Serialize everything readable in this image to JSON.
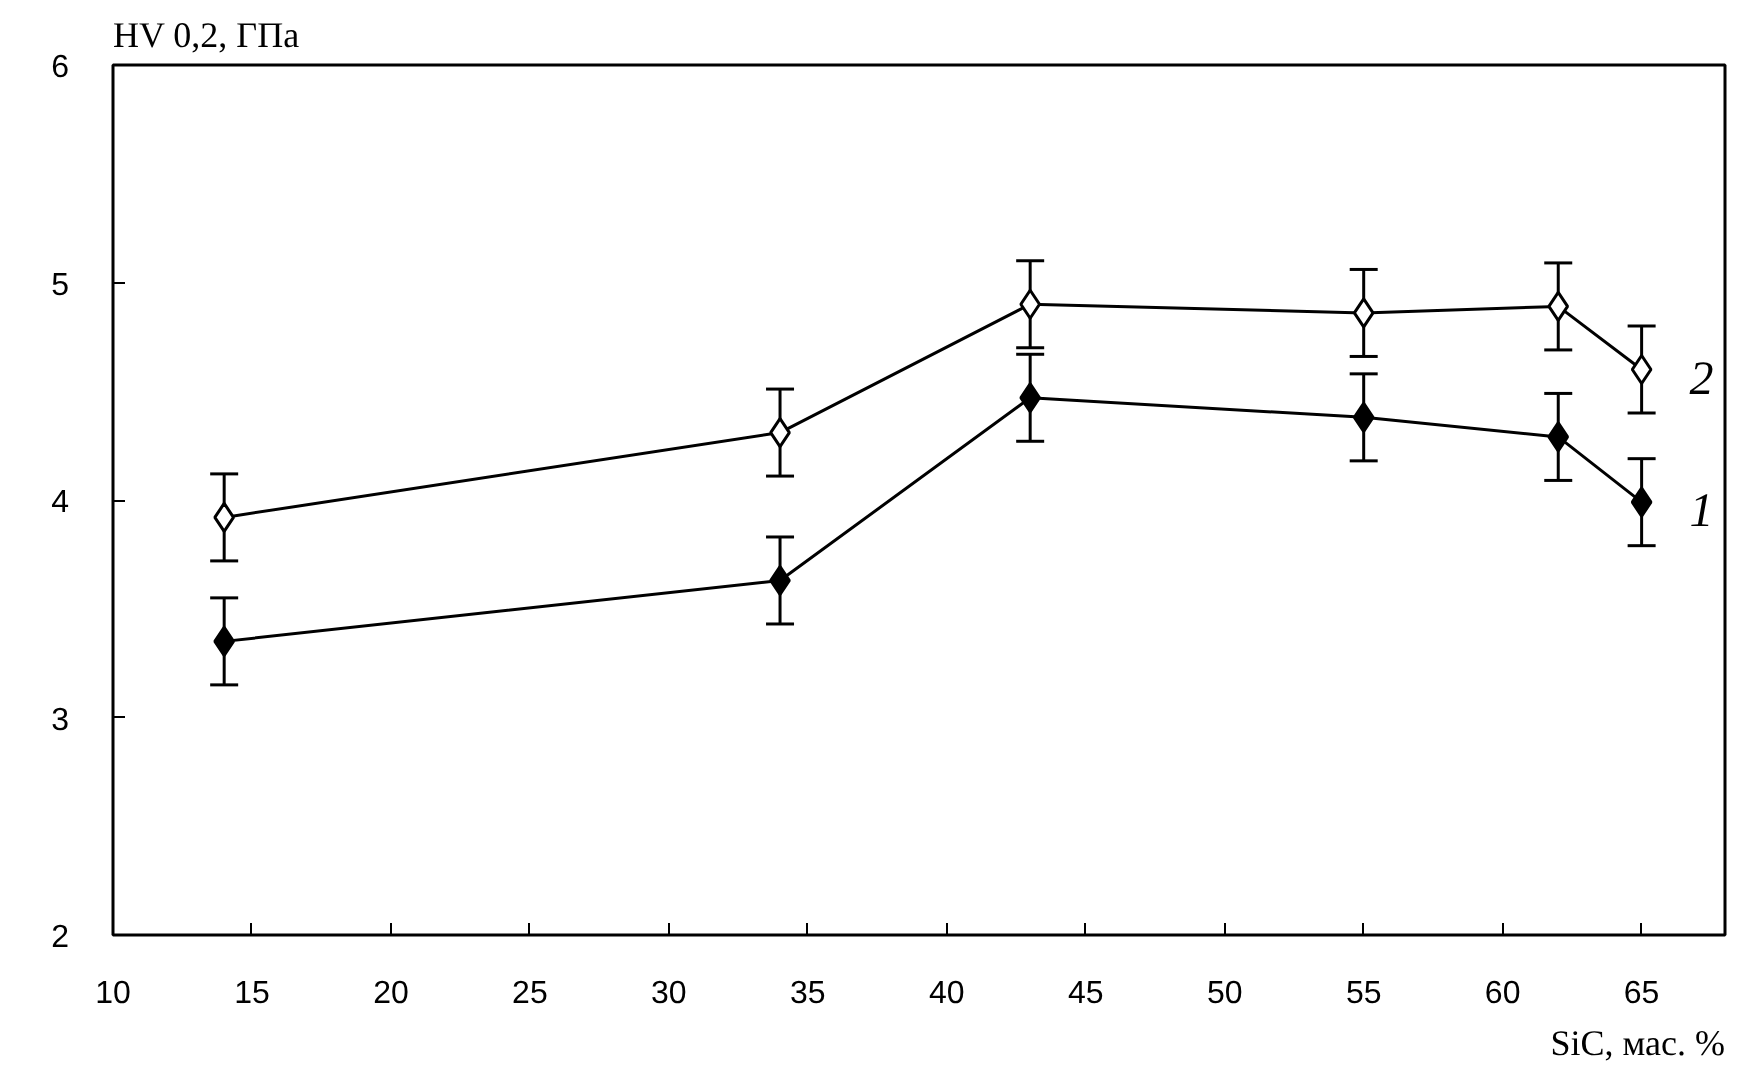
{
  "chart_data": {
    "type": "line",
    "xlabel": "SiC, мас. %",
    "ylabel": "HV 0,2, ГПа",
    "x": [
      14,
      34,
      43,
      55,
      62,
      65
    ],
    "series": [
      {
        "name": "1",
        "color": "#000000",
        "values": [
          3.35,
          3.63,
          4.47,
          4.38,
          4.29,
          3.99
        ],
        "errors": [
          0.2,
          0.2,
          0.2,
          0.2,
          0.2,
          0.2
        ]
      },
      {
        "name": "2",
        "color": "#000000",
        "values": [
          3.92,
          4.31,
          4.9,
          4.86,
          4.89,
          4.6
        ],
        "errors": [
          0.2,
          0.2,
          0.2,
          0.2,
          0.2,
          0.2
        ]
      }
    ],
    "xlim": [
      10,
      68
    ],
    "xticks": [
      10,
      15,
      20,
      25,
      30,
      35,
      40,
      45,
      50,
      55,
      60,
      65
    ],
    "ylim": [
      2,
      6
    ],
    "yticks": [
      2,
      3,
      4,
      5,
      6
    ],
    "grid": false,
    "marker": "diamond",
    "line_style": "solid"
  }
}
